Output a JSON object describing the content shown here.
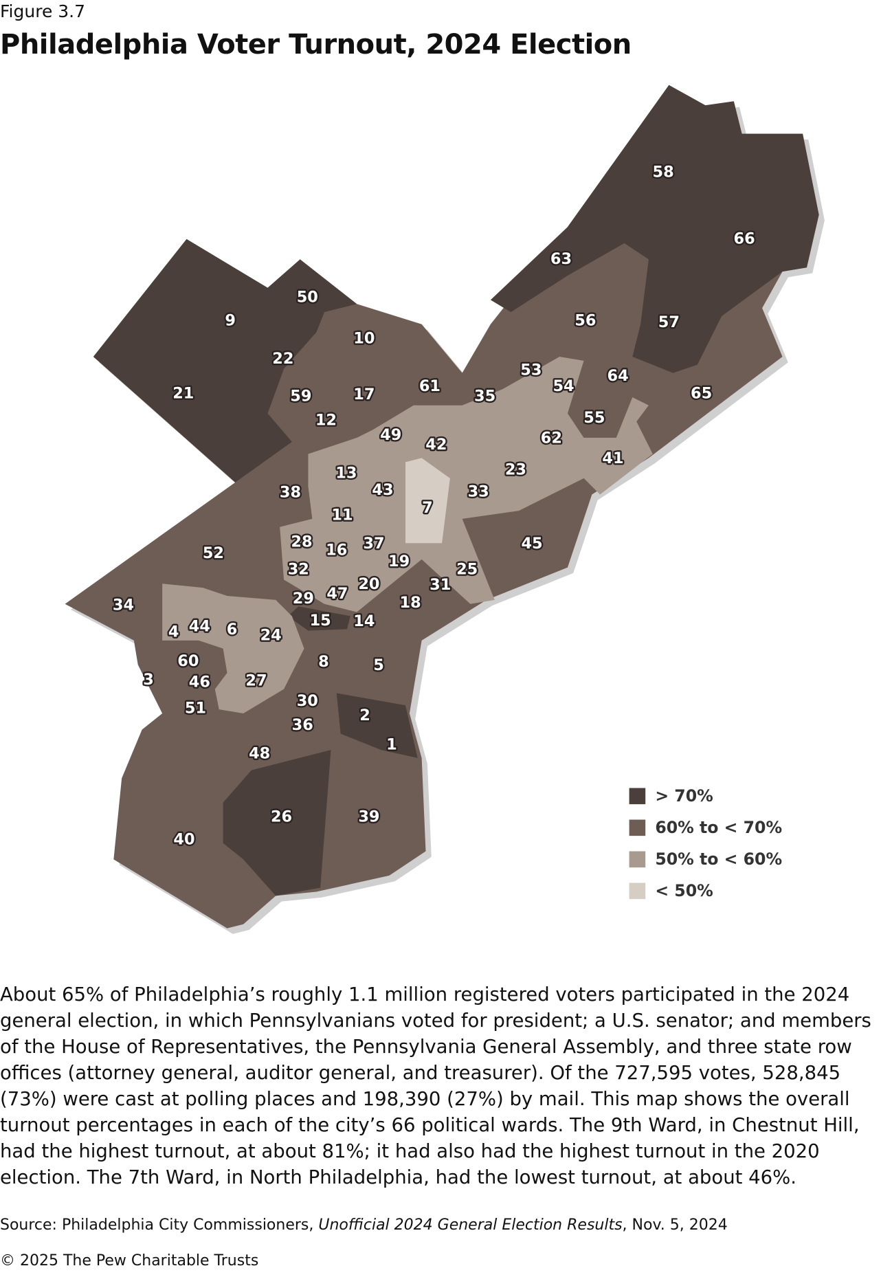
{
  "header": {
    "figure": "Figure 3.7",
    "title": "Philadelphia Voter Turnout, 2024 Election"
  },
  "map": {
    "legend": [
      {
        "label": "> 70%",
        "color": "#4a3f3b"
      },
      {
        "label": "60% to < 70%",
        "color": "#6e5d54"
      },
      {
        "label": "50% to < 60%",
        "color": "#a89a8f"
      },
      {
        "label": "< 50%",
        "color": "#d6cdc5"
      }
    ],
    "wards": [
      "1",
      "2",
      "3",
      "4",
      "5",
      "6",
      "7",
      "8",
      "9",
      "10",
      "11",
      "12",
      "13",
      "14",
      "15",
      "16",
      "17",
      "18",
      "19",
      "20",
      "21",
      "22",
      "23",
      "24",
      "25",
      "26",
      "27",
      "28",
      "29",
      "30",
      "31",
      "32",
      "33",
      "34",
      "35",
      "36",
      "37",
      "38",
      "39",
      "40",
      "41",
      "42",
      "43",
      "44",
      "45",
      "46",
      "47",
      "48",
      "49",
      "50",
      "51",
      "52",
      "53",
      "54",
      "55",
      "56",
      "57",
      "58",
      "59",
      "60",
      "61",
      "62",
      "63",
      "64",
      "65",
      "66"
    ]
  },
  "body": {
    "paragraph": "About 65% of Philadelphia’s roughly 1.1 million registered voters participated in the 2024 general election, in which Pennsylvanians voted for president; a U.S. senator; and members of the House of Representatives, the Pennsylvania General Assembly, and three state row offices (attorney general, auditor general, and treasurer). Of the 727,595 votes, 528,845 (73%) were cast at polling places and 198,390 (27%) by mail. This map shows the overall turnout percentages in each of the city’s 66 political wards. The 9th Ward, in Chestnut Hill, had the highest turnout, at about 81%; it had also had the highest turnout in the 2020 election. The 7th Ward, in North Philadelphia, had the lowest turnout, at about 46%."
  },
  "footer": {
    "source": [
      "Source: Philadelphia City Commissioners, ",
      "Unofficial 2024 General Election Results",
      ", Nov. 5, 2024"
    ],
    "copyright": "© 2025 The Pew Charitable Trusts"
  }
}
